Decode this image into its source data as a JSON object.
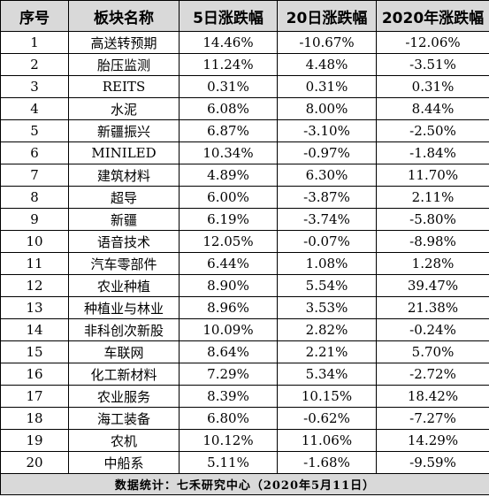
{
  "headers": [
    "序号",
    "板块名称",
    "5日涨跌幅",
    "20日涨跌幅",
    "2020年涨跌幅"
  ],
  "rows": [
    [
      "1",
      "高送转预期",
      "14.46%",
      "-10.67%",
      "-12.06%"
    ],
    [
      "2",
      "胎压监测",
      "11.24%",
      "4.48%",
      "-3.51%"
    ],
    [
      "3",
      "REITS",
      "0.31%",
      "0.31%",
      "0.31%"
    ],
    [
      "4",
      "水泥",
      "6.08%",
      "8.00%",
      "8.44%"
    ],
    [
      "5",
      "新疆振兴",
      "6.87%",
      "-3.10%",
      "-2.50%"
    ],
    [
      "6",
      "MINILED",
      "10.34%",
      "-0.97%",
      "-1.84%"
    ],
    [
      "7",
      "建筑材料",
      "4.89%",
      "6.30%",
      "11.70%"
    ],
    [
      "8",
      "超导",
      "6.00%",
      "-3.87%",
      "2.11%"
    ],
    [
      "9",
      "新疆",
      "6.19%",
      "-3.74%",
      "-5.80%"
    ],
    [
      "10",
      "语音技术",
      "12.05%",
      "-0.07%",
      "-8.98%"
    ],
    [
      "11",
      "汽车零部件",
      "6.44%",
      "1.08%",
      "1.28%"
    ],
    [
      "12",
      "农业种植",
      "8.90%",
      "5.54%",
      "39.47%"
    ],
    [
      "13",
      "种植业与林业",
      "8.96%",
      "3.53%",
      "21.38%"
    ],
    [
      "14",
      "非科创次新股",
      "10.09%",
      "2.82%",
      "-0.24%"
    ],
    [
      "15",
      "车联网",
      "8.64%",
      "2.21%",
      "5.70%"
    ],
    [
      "16",
      "化工新材料",
      "7.29%",
      "5.34%",
      "-2.72%"
    ],
    [
      "17",
      "农业服务",
      "8.39%",
      "10.15%",
      "18.42%"
    ],
    [
      "18",
      "海工装备",
      "6.80%",
      "-0.62%",
      "-7.27%"
    ],
    [
      "19",
      "农机",
      "10.12%",
      "11.06%",
      "14.29%"
    ],
    [
      "20",
      "中船系",
      "5.11%",
      "-1.68%",
      "-9.59%"
    ]
  ],
  "footer": "数据统计：七禾研究中心（2020年5月11日）"
}
